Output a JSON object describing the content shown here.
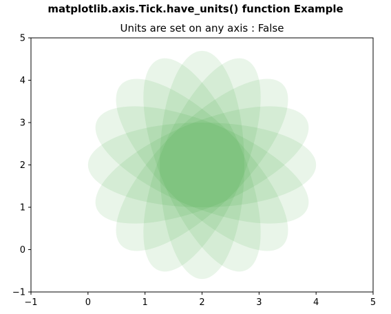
{
  "suptitle": "matplotlib.axis.Tick.have_units() function Example",
  "chart_data": {
    "type": "scatter",
    "title": "Units are set on any axis : False",
    "xlabel": "",
    "ylabel": "",
    "xlim": [
      -1,
      5
    ],
    "ylim": [
      -1,
      5
    ],
    "xticks": [
      "−1",
      "0",
      "1",
      "2",
      "3",
      "4",
      "5"
    ],
    "yticks": [
      "−1",
      "0",
      "1",
      "2",
      "3",
      "4",
      "5"
    ],
    "grid": false,
    "series": [
      {
        "shape": "ellipse",
        "color": "#2ca02c",
        "alpha": 0.1,
        "center_x": 2,
        "center_y": 2,
        "width": 4,
        "height": 2,
        "angles_deg": [
          0,
          22.5,
          45,
          67.5,
          90,
          112.5,
          135,
          157.5
        ]
      }
    ]
  }
}
